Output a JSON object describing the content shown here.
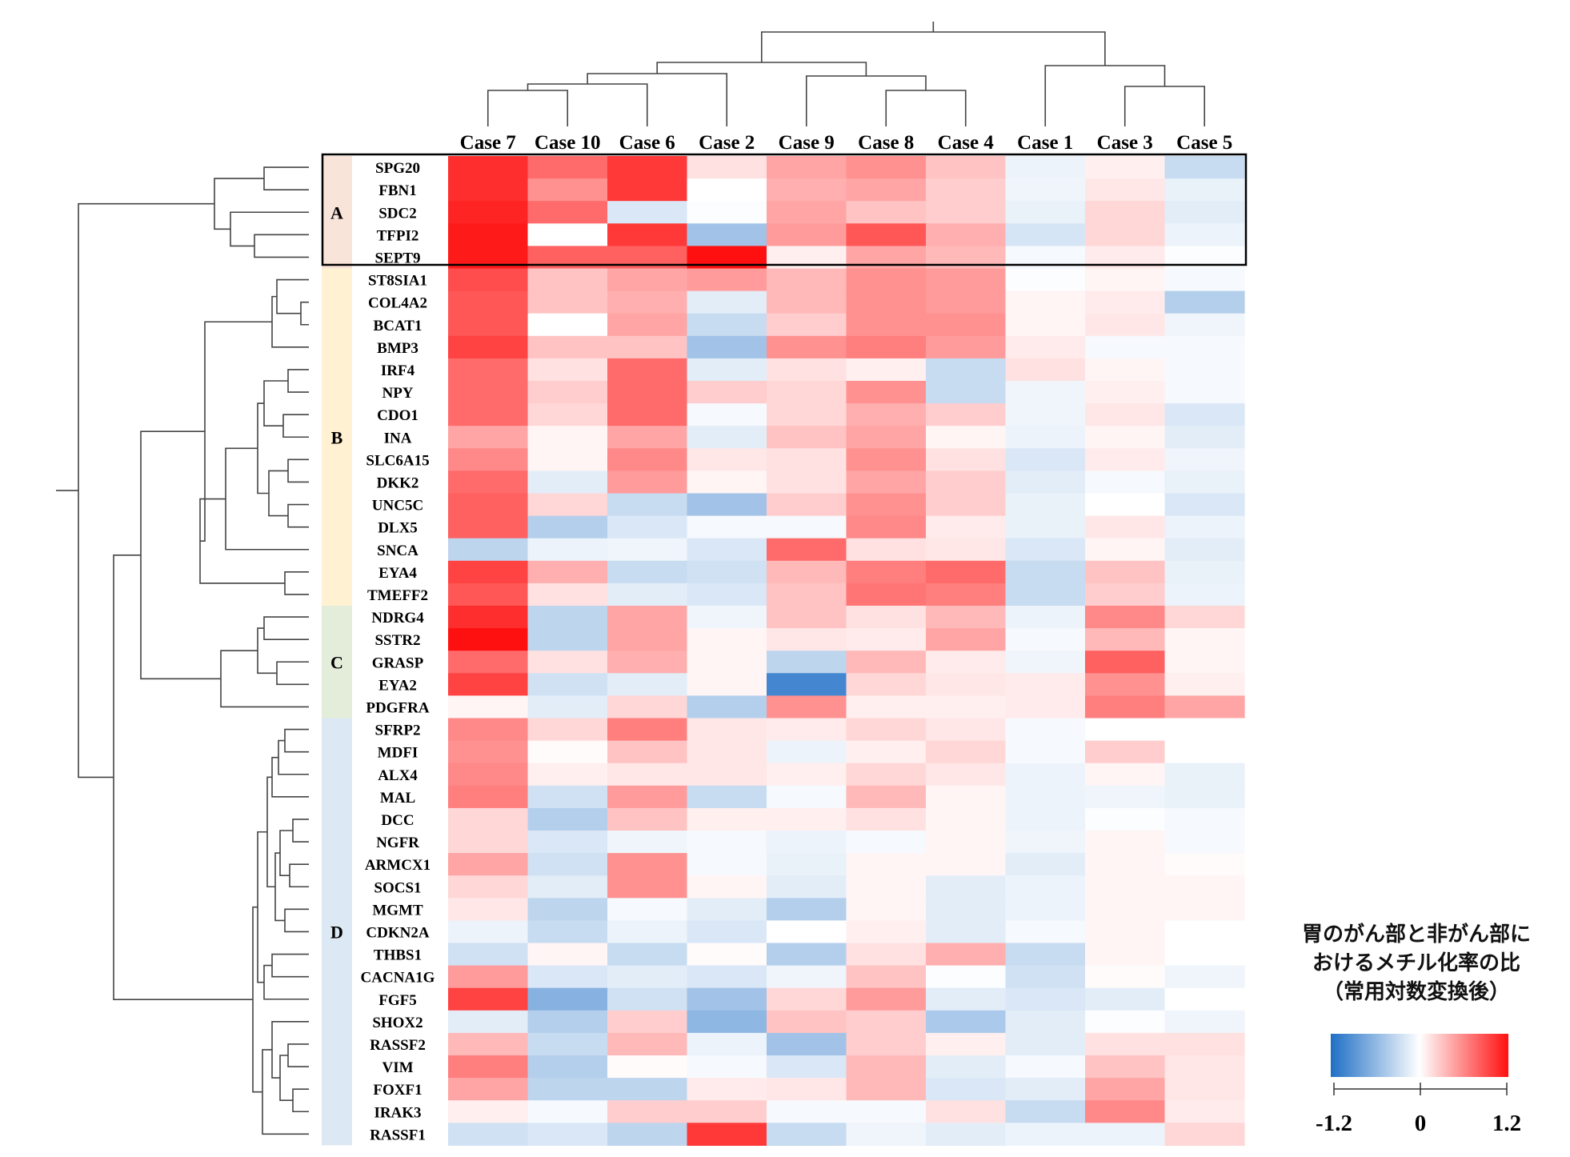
{
  "chart_data": {
    "type": "heatmap",
    "columns": [
      "Case 7",
      "Case 10",
      "Case 6",
      "Case 2",
      "Case 9",
      "Case 8",
      "Case 4",
      "Case 1",
      "Case 3",
      "Case 5"
    ],
    "rows": [
      "SPG20",
      "FBN1",
      "SDC2",
      "TFPI2",
      "SEPT9",
      "ST8SIA1",
      "COL4A2",
      "BCAT1",
      "BMP3",
      "IRF4",
      "NPY",
      "CDO1",
      "INA",
      "SLC6A15",
      "DKK2",
      "UNC5C",
      "DLX5",
      "SNCA",
      "EYA4",
      "TMEFF2",
      "NDRG4",
      "SSTR2",
      "GRASP",
      "EYA2",
      "PDGFRA",
      "SFRP2",
      "MDFI",
      "ALX4",
      "MAL",
      "DCC",
      "NGFR",
      "ARMCX1",
      "SOCS1",
      "MGMT",
      "CDKN2A",
      "THBS1",
      "CACNA1G",
      "FGF5",
      "SHOX2",
      "RASSF2",
      "VIM",
      "FOXF1",
      "IRAK3",
      "RASSF1"
    ],
    "values": [
      [
        1.05,
        0.75,
        1.0,
        0.15,
        0.45,
        0.55,
        0.3,
        -0.1,
        0.08,
        -0.3
      ],
      [
        1.05,
        0.55,
        1.0,
        0.0,
        0.4,
        0.45,
        0.25,
        -0.08,
        0.12,
        -0.12
      ],
      [
        1.1,
        0.75,
        -0.2,
        -0.02,
        0.45,
        0.3,
        0.25,
        -0.12,
        0.2,
        -0.15
      ],
      [
        1.15,
        0.0,
        1.0,
        -0.5,
        0.5,
        0.85,
        0.4,
        -0.22,
        0.2,
        -0.1
      ],
      [
        1.15,
        0.8,
        0.8,
        1.2,
        0.08,
        0.45,
        0.35,
        -0.05,
        0.1,
        -0.02
      ],
      [
        0.9,
        0.3,
        0.45,
        0.5,
        0.35,
        0.55,
        0.5,
        -0.02,
        0.05,
        -0.05
      ],
      [
        0.85,
        0.3,
        0.4,
        -0.15,
        0.35,
        0.55,
        0.5,
        0.05,
        0.1,
        -0.4
      ],
      [
        0.85,
        0.0,
        0.45,
        -0.3,
        0.25,
        0.55,
        0.55,
        0.05,
        0.12,
        -0.08
      ],
      [
        0.95,
        0.3,
        0.3,
        -0.5,
        0.55,
        0.65,
        0.5,
        0.1,
        -0.05,
        -0.05
      ],
      [
        0.75,
        0.15,
        0.75,
        -0.15,
        0.15,
        0.08,
        -0.3,
        0.15,
        0.05,
        -0.05
      ],
      [
        0.75,
        0.25,
        0.75,
        0.25,
        0.2,
        0.55,
        -0.3,
        -0.08,
        0.08,
        -0.05
      ],
      [
        0.75,
        0.2,
        0.75,
        -0.05,
        0.2,
        0.4,
        0.25,
        -0.08,
        0.12,
        -0.2
      ],
      [
        0.45,
        0.05,
        0.45,
        -0.15,
        0.3,
        0.45,
        0.05,
        -0.1,
        0.05,
        -0.15
      ],
      [
        0.6,
        0.05,
        0.6,
        0.12,
        0.15,
        0.55,
        0.15,
        -0.2,
        0.1,
        -0.08
      ],
      [
        0.75,
        -0.15,
        0.5,
        0.05,
        0.15,
        0.45,
        0.25,
        -0.15,
        -0.05,
        -0.12
      ],
      [
        0.8,
        0.2,
        -0.3,
        -0.5,
        0.25,
        0.55,
        0.25,
        -0.12,
        0.0,
        -0.2
      ],
      [
        0.8,
        -0.4,
        -0.2,
        -0.05,
        -0.05,
        0.6,
        0.1,
        -0.12,
        0.12,
        -0.1
      ],
      [
        -0.35,
        -0.1,
        -0.08,
        -0.2,
        0.75,
        0.15,
        0.12,
        -0.2,
        0.05,
        -0.15
      ],
      [
        0.95,
        0.4,
        -0.3,
        -0.25,
        0.35,
        0.65,
        0.75,
        -0.3,
        0.3,
        -0.12
      ],
      [
        0.85,
        0.15,
        -0.15,
        -0.2,
        0.3,
        0.7,
        0.65,
        -0.3,
        0.25,
        -0.1
      ],
      [
        1.05,
        -0.35,
        0.45,
        -0.08,
        0.3,
        0.15,
        0.35,
        -0.1,
        0.6,
        0.2
      ],
      [
        1.2,
        -0.35,
        0.45,
        0.05,
        0.12,
        0.1,
        0.45,
        -0.05,
        0.35,
        0.05
      ],
      [
        0.75,
        0.15,
        0.4,
        0.05,
        -0.35,
        0.35,
        0.1,
        -0.08,
        0.8,
        0.05
      ],
      [
        0.95,
        -0.25,
        -0.15,
        0.05,
        -1.0,
        0.2,
        0.12,
        0.1,
        0.55,
        0.08
      ],
      [
        0.05,
        -0.15,
        0.2,
        -0.4,
        0.55,
        0.08,
        0.08,
        0.1,
        0.65,
        0.45
      ],
      [
        0.6,
        0.2,
        0.65,
        0.12,
        0.1,
        0.2,
        0.12,
        -0.05,
        0.0,
        0.0
      ],
      [
        0.55,
        0.02,
        0.3,
        0.12,
        -0.1,
        0.08,
        0.2,
        -0.05,
        0.25,
        0.0
      ],
      [
        0.6,
        0.08,
        0.12,
        0.12,
        0.08,
        0.2,
        0.12,
        -0.1,
        0.05,
        -0.12
      ],
      [
        0.65,
        -0.25,
        0.5,
        -0.3,
        -0.05,
        0.35,
        0.05,
        -0.1,
        -0.08,
        -0.12
      ],
      [
        0.2,
        -0.4,
        0.3,
        0.08,
        0.08,
        0.15,
        0.05,
        -0.1,
        -0.02,
        -0.05
      ],
      [
        0.2,
        -0.2,
        -0.08,
        -0.05,
        -0.1,
        -0.05,
        0.05,
        -0.08,
        0.05,
        -0.05
      ],
      [
        0.45,
        -0.25,
        0.55,
        -0.05,
        -0.12,
        0.05,
        0.05,
        -0.15,
        0.05,
        0.02
      ],
      [
        0.2,
        -0.15,
        0.55,
        0.05,
        -0.15,
        0.05,
        -0.15,
        -0.1,
        0.05,
        0.05
      ],
      [
        0.12,
        -0.35,
        -0.05,
        -0.15,
        -0.4,
        0.05,
        -0.15,
        -0.1,
        0.05,
        0.05
      ],
      [
        -0.1,
        -0.3,
        -0.1,
        -0.2,
        0.0,
        0.08,
        -0.15,
        -0.05,
        0.05,
        0.0
      ],
      [
        -0.25,
        0.05,
        -0.3,
        0.02,
        -0.4,
        0.15,
        0.4,
        -0.3,
        0.05,
        0.0
      ],
      [
        0.5,
        -0.2,
        -0.15,
        -0.2,
        -0.08,
        0.3,
        -0.02,
        -0.25,
        0.02,
        -0.08
      ],
      [
        0.95,
        -0.65,
        -0.25,
        -0.5,
        0.2,
        0.5,
        -0.15,
        -0.2,
        -0.15,
        0.0
      ],
      [
        -0.15,
        -0.4,
        0.25,
        -0.6,
        0.3,
        0.25,
        -0.45,
        -0.15,
        -0.02,
        -0.08
      ],
      [
        0.35,
        -0.3,
        0.35,
        -0.1,
        -0.5,
        0.25,
        0.08,
        -0.15,
        0.15,
        0.15
      ],
      [
        0.65,
        -0.4,
        0.02,
        -0.05,
        -0.2,
        0.35,
        -0.15,
        -0.05,
        0.3,
        0.12
      ],
      [
        0.45,
        -0.35,
        -0.35,
        0.1,
        0.12,
        0.35,
        -0.2,
        -0.15,
        0.45,
        0.12
      ],
      [
        0.08,
        -0.05,
        0.25,
        0.25,
        -0.05,
        -0.05,
        0.15,
        -0.3,
        0.6,
        0.1
      ],
      [
        -0.25,
        -0.2,
        -0.35,
        1.0,
        -0.3,
        -0.08,
        -0.15,
        -0.1,
        -0.1,
        0.2
      ]
    ],
    "groups": [
      {
        "label": "A",
        "rows": 5,
        "color": "#f9e4d9"
      },
      {
        "label": "B",
        "rows": 15,
        "color": "#fff1d2"
      },
      {
        "label": "C",
        "rows": 5,
        "color": "#e4edd9"
      },
      {
        "label": "D",
        "rows": 19,
        "color": "#dce8f4"
      }
    ],
    "colorscale": {
      "min": -1.2,
      "mid": 0,
      "max": 1.2,
      "low_color": "#1f6fc6",
      "mid_color": "#ffffff",
      "high_color": "#ff1010"
    },
    "legend": {
      "title_lines": [
        "胃のがん部と非がん部に",
        "おけるメチル化率の比",
        "（常用対数変換後）"
      ],
      "tick_labels": [
        "-1.2",
        "0",
        "1.2"
      ]
    }
  }
}
